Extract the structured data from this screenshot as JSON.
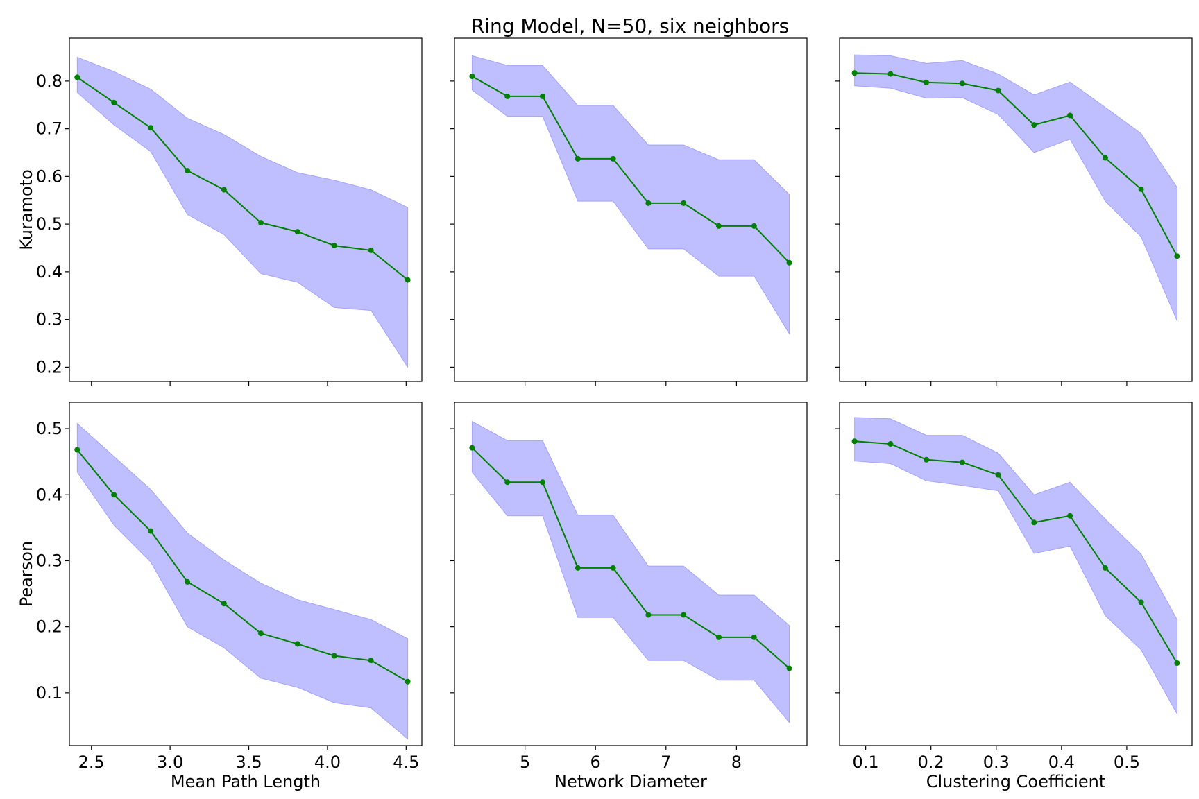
{
  "figure": {
    "title": "Ring Model, N=50, six neighbors",
    "colors": {
      "band": "#8080ff",
      "line": "#008000",
      "axes": "#000000"
    }
  },
  "chart_data": [
    {
      "type": "line",
      "row": 0,
      "col": 0,
      "show_ylabel": true,
      "show_xlabel": false,
      "ylabel": "Kuramoto",
      "xlabel": "Mean Path Length",
      "xlim": [
        2.36,
        4.6
      ],
      "ylim": [
        0.17,
        0.89
      ],
      "xticks": [
        2.5,
        3.0,
        3.5,
        4.0,
        4.5
      ],
      "xticklabels": [],
      "yticks": [
        0.2,
        0.3,
        0.4,
        0.5,
        0.6,
        0.7,
        0.8
      ],
      "yticklabels": [
        "0.2",
        "0.3",
        "0.4",
        "0.5",
        "0.6",
        "0.7",
        "0.8"
      ],
      "x": [
        2.41,
        2.643,
        2.877,
        3.11,
        3.343,
        3.577,
        3.81,
        4.043,
        4.277,
        4.51
      ],
      "y": [
        0.808,
        0.755,
        0.702,
        0.612,
        0.572,
        0.503,
        0.484,
        0.455,
        0.445,
        0.383
      ],
      "upper": [
        0.85,
        0.82,
        0.783,
        0.722,
        0.688,
        0.642,
        0.608,
        0.592,
        0.572,
        0.535
      ],
      "lower": [
        0.776,
        0.708,
        0.652,
        0.52,
        0.478,
        0.396,
        0.378,
        0.325,
        0.319,
        0.2
      ]
    },
    {
      "type": "line",
      "row": 0,
      "col": 1,
      "show_ylabel": false,
      "show_xlabel": false,
      "ylabel": "",
      "xlabel": "Network Diameter",
      "xlim": [
        4.0,
        9.0
      ],
      "ylim": [
        0.17,
        0.89
      ],
      "xticks": [
        5,
        6,
        7,
        8
      ],
      "xticklabels": [],
      "yticks": [
        0.2,
        0.3,
        0.4,
        0.5,
        0.6,
        0.7,
        0.8
      ],
      "yticklabels": [],
      "x": [
        4.25,
        4.75,
        5.25,
        5.75,
        6.25,
        6.75,
        7.25,
        7.75,
        8.25,
        8.75
      ],
      "y": [
        0.81,
        0.768,
        0.768,
        0.637,
        0.637,
        0.544,
        0.544,
        0.496,
        0.496,
        0.419
      ],
      "upper": [
        0.853,
        0.833,
        0.833,
        0.749,
        0.749,
        0.666,
        0.666,
        0.635,
        0.635,
        0.562
      ],
      "lower": [
        0.781,
        0.726,
        0.726,
        0.548,
        0.548,
        0.448,
        0.448,
        0.391,
        0.391,
        0.27
      ]
    },
    {
      "type": "line",
      "row": 0,
      "col": 2,
      "show_ylabel": false,
      "show_xlabel": false,
      "ylabel": "",
      "xlabel": "Clustering Coefficient",
      "xlim": [
        0.06,
        0.6
      ],
      "ylim": [
        0.17,
        0.89
      ],
      "xticks": [
        0.1,
        0.2,
        0.3,
        0.4,
        0.5
      ],
      "xticklabels": [],
      "yticks": [
        0.2,
        0.3,
        0.4,
        0.5,
        0.6,
        0.7,
        0.8
      ],
      "yticklabels": [],
      "x": [
        0.083,
        0.138,
        0.193,
        0.248,
        0.303,
        0.358,
        0.413,
        0.467,
        0.522,
        0.577
      ],
      "y": [
        0.817,
        0.815,
        0.797,
        0.795,
        0.78,
        0.708,
        0.728,
        0.639,
        0.573,
        0.433
      ],
      "upper": [
        0.855,
        0.853,
        0.837,
        0.843,
        0.815,
        0.771,
        0.798,
        0.745,
        0.69,
        0.577
      ],
      "lower": [
        0.79,
        0.785,
        0.764,
        0.765,
        0.73,
        0.65,
        0.678,
        0.548,
        0.473,
        0.297
      ]
    },
    {
      "type": "line",
      "row": 1,
      "col": 0,
      "show_ylabel": true,
      "show_xlabel": true,
      "ylabel": "Pearson",
      "xlabel": "Mean Path Length",
      "xlim": [
        2.36,
        4.6
      ],
      "ylim": [
        0.02,
        0.54
      ],
      "xticks": [
        2.5,
        3.0,
        3.5,
        4.0,
        4.5
      ],
      "xticklabels": [
        "2.5",
        "3.0",
        "3.5",
        "4.0",
        "4.5"
      ],
      "yticks": [
        0.1,
        0.2,
        0.3,
        0.4,
        0.5
      ],
      "yticklabels": [
        "0.1",
        "0.2",
        "0.3",
        "0.4",
        "0.5"
      ],
      "x": [
        2.41,
        2.643,
        2.877,
        3.11,
        3.343,
        3.577,
        3.81,
        4.043,
        4.277,
        4.51
      ],
      "y": [
        0.468,
        0.4,
        0.345,
        0.268,
        0.235,
        0.19,
        0.174,
        0.156,
        0.149,
        0.117
      ],
      "upper": [
        0.508,
        0.458,
        0.408,
        0.342,
        0.301,
        0.266,
        0.241,
        0.226,
        0.211,
        0.182
      ],
      "lower": [
        0.434,
        0.354,
        0.298,
        0.2,
        0.168,
        0.122,
        0.108,
        0.085,
        0.077,
        0.03
      ]
    },
    {
      "type": "line",
      "row": 1,
      "col": 1,
      "show_ylabel": false,
      "show_xlabel": true,
      "ylabel": "",
      "xlabel": "Network Diameter",
      "xlim": [
        4.0,
        9.0
      ],
      "ylim": [
        0.02,
        0.54
      ],
      "xticks": [
        5,
        6,
        7,
        8
      ],
      "xticklabels": [
        "5",
        "6",
        "7",
        "8"
      ],
      "yticks": [
        0.1,
        0.2,
        0.3,
        0.4,
        0.5
      ],
      "yticklabels": [],
      "x": [
        4.25,
        4.75,
        5.25,
        5.75,
        6.25,
        6.75,
        7.25,
        7.75,
        8.25,
        8.75
      ],
      "y": [
        0.471,
        0.419,
        0.419,
        0.289,
        0.289,
        0.218,
        0.218,
        0.184,
        0.184,
        0.137
      ],
      "upper": [
        0.511,
        0.482,
        0.482,
        0.369,
        0.369,
        0.292,
        0.292,
        0.248,
        0.248,
        0.202
      ],
      "lower": [
        0.434,
        0.368,
        0.368,
        0.214,
        0.214,
        0.149,
        0.149,
        0.119,
        0.119,
        0.055
      ]
    },
    {
      "type": "line",
      "row": 1,
      "col": 2,
      "show_ylabel": false,
      "show_xlabel": true,
      "ylabel": "",
      "xlabel": "Clustering Coefficient",
      "xlim": [
        0.06,
        0.6
      ],
      "ylim": [
        0.02,
        0.54
      ],
      "xticks": [
        0.1,
        0.2,
        0.3,
        0.4,
        0.5
      ],
      "xticklabels": [
        "0.1",
        "0.2",
        "0.3",
        "0.4",
        "0.5"
      ],
      "yticks": [
        0.1,
        0.2,
        0.3,
        0.4,
        0.5
      ],
      "yticklabels": [],
      "x": [
        0.083,
        0.138,
        0.193,
        0.248,
        0.303,
        0.358,
        0.413,
        0.467,
        0.522,
        0.577
      ],
      "y": [
        0.481,
        0.477,
        0.453,
        0.449,
        0.43,
        0.358,
        0.368,
        0.289,
        0.237,
        0.145
      ],
      "upper": [
        0.517,
        0.515,
        0.49,
        0.49,
        0.463,
        0.4,
        0.419,
        0.363,
        0.31,
        0.211
      ],
      "lower": [
        0.451,
        0.447,
        0.421,
        0.414,
        0.406,
        0.311,
        0.322,
        0.217,
        0.165,
        0.068
      ]
    }
  ]
}
